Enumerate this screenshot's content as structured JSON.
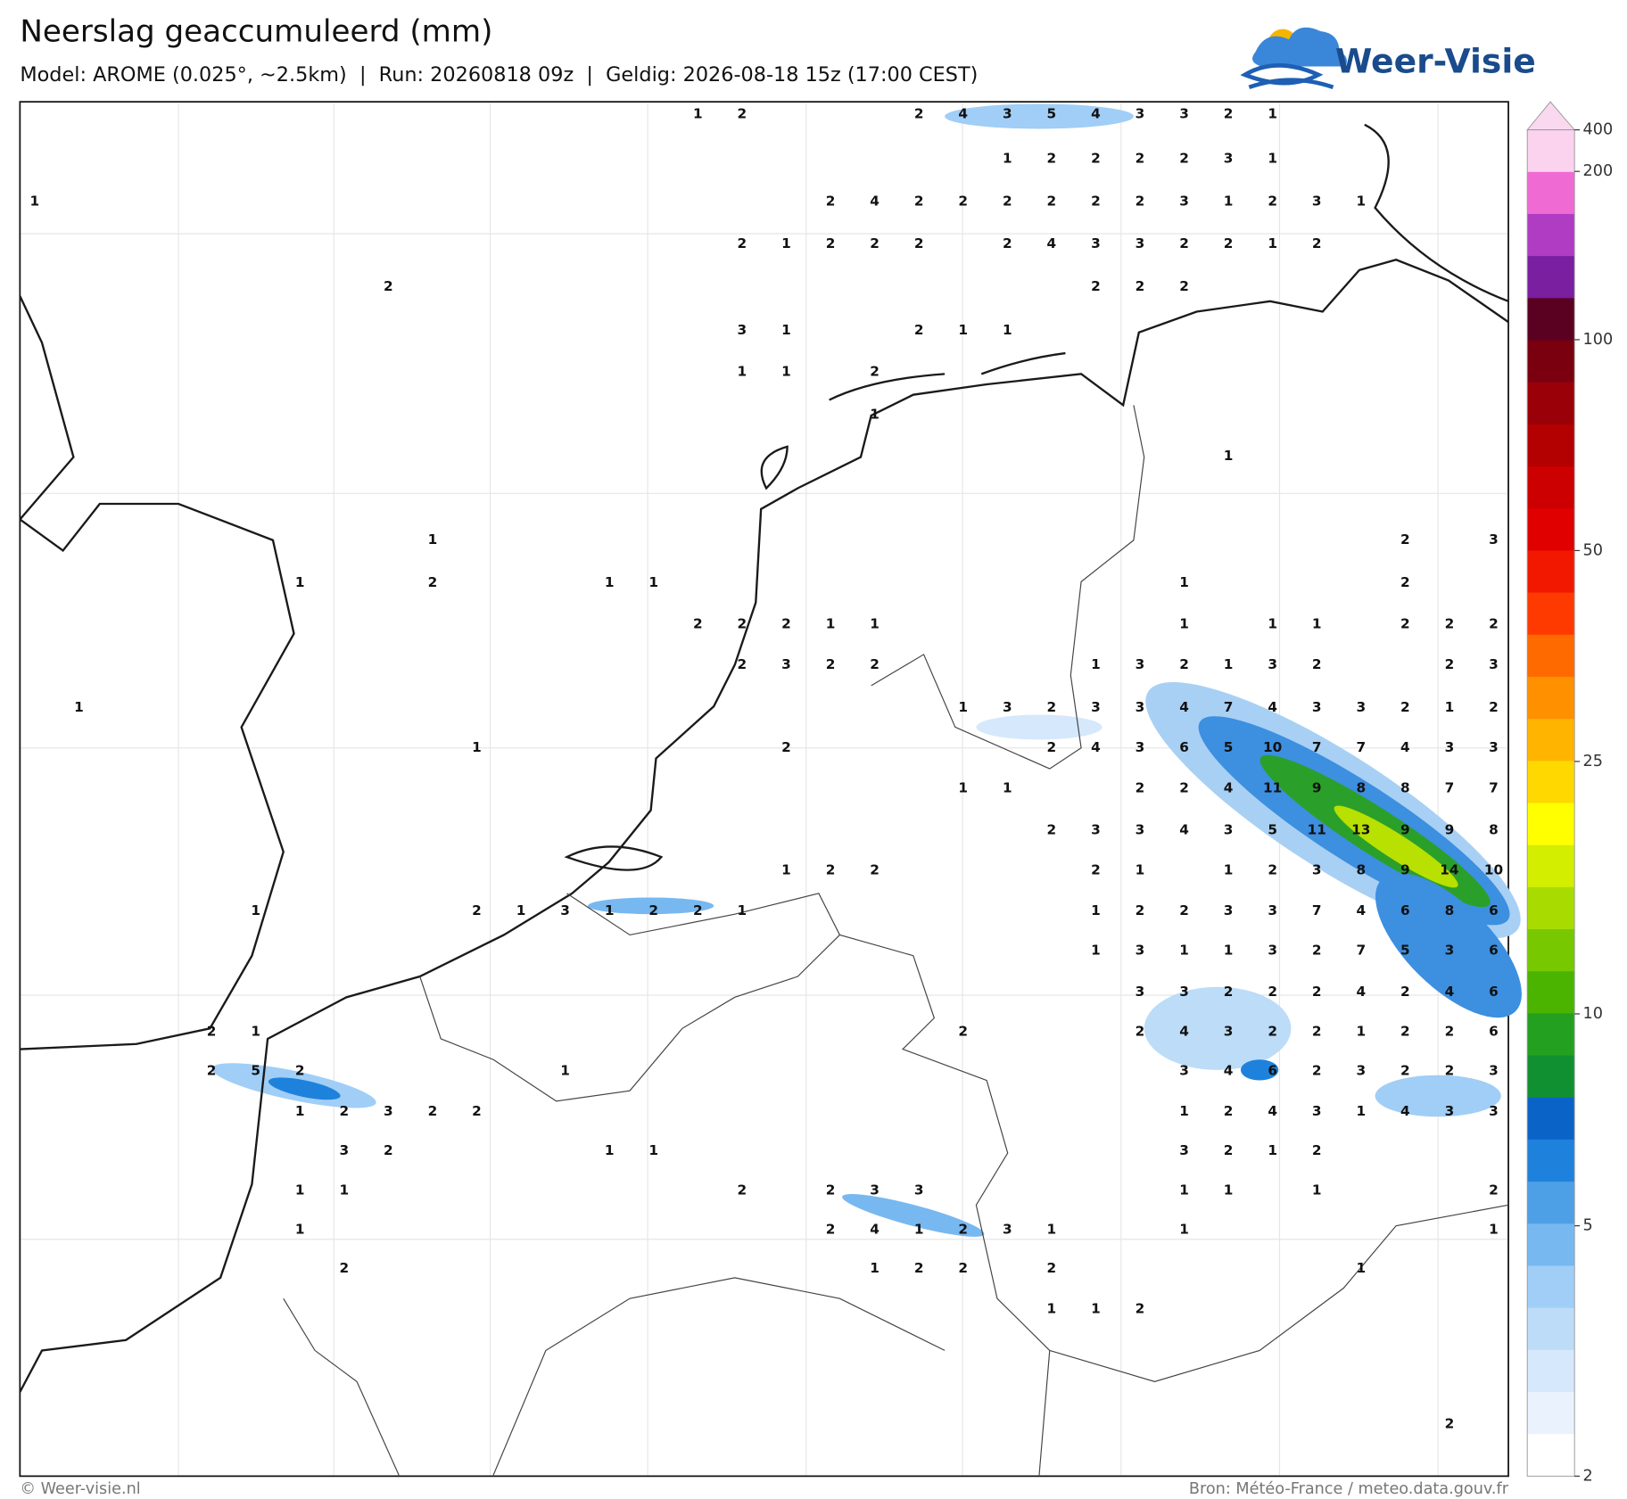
{
  "header": {
    "title": "Neerslag geaccumuleerd (mm)",
    "subtitle": "Model: AROME (0.025°, ~2.5km)  |  Run: 20260818 09z  |  Geldig: 2026-08-18 15z (17:00 CEST)",
    "logo": "Weer-Visie"
  },
  "colorbar": {
    "labels": [
      "400",
      "200",
      "100",
      "50",
      "25",
      "10",
      "5",
      "2"
    ],
    "colors": [
      "#fbd3ef",
      "#f06ad4",
      "#b03cc4",
      "#7a1fa0",
      "#5a0020",
      "#7a0010",
      "#9a0008",
      "#b30000",
      "#cc0000",
      "#e00000",
      "#f21800",
      "#ff3a00",
      "#ff6a00",
      "#ff9000",
      "#ffb400",
      "#ffd800",
      "#ffff00",
      "#d4ee00",
      "#a8dc00",
      "#78c800",
      "#4ab400",
      "#24a020",
      "#109030",
      "#0a64c8",
      "#1e82dc",
      "#4ea0e6",
      "#78b8f0",
      "#a0cef6",
      "#bcdcf8",
      "#d6e8fb",
      "#eaf3fd",
      "#ffffff"
    ]
  },
  "grid": [
    [
      null,
      null,
      null,
      null,
      null,
      null,
      null,
      null,
      null,
      null,
      null,
      null,
      null,
      null,
      null,
      1,
      2,
      null,
      null,
      null,
      2,
      4,
      3,
      5,
      4,
      3,
      3,
      2,
      1,
      null,
      null,
      null,
      null,
      null
    ],
    [
      null,
      null,
      null,
      null,
      null,
      null,
      null,
      null,
      null,
      null,
      null,
      null,
      null,
      null,
      null,
      null,
      null,
      null,
      null,
      null,
      null,
      null,
      1,
      2,
      2,
      2,
      2,
      3,
      1,
      null,
      null,
      null,
      null,
      null
    ],
    [
      1,
      null,
      null,
      null,
      null,
      null,
      null,
      null,
      null,
      null,
      null,
      null,
      null,
      null,
      null,
      null,
      null,
      null,
      2,
      4,
      2,
      2,
      2,
      2,
      2,
      2,
      3,
      1,
      2,
      3,
      1,
      null,
      null,
      null
    ],
    [
      null,
      null,
      null,
      null,
      null,
      null,
      null,
      null,
      null,
      null,
      null,
      null,
      null,
      null,
      null,
      null,
      2,
      1,
      2,
      2,
      2,
      null,
      2,
      4,
      3,
      3,
      2,
      2,
      1,
      2,
      null,
      null,
      null,
      null
    ],
    [
      null,
      null,
      null,
      null,
      null,
      null,
      null,
      null,
      2,
      null,
      null,
      null,
      null,
      null,
      null,
      null,
      null,
      null,
      null,
      null,
      null,
      null,
      null,
      null,
      2,
      2,
      2,
      null,
      null,
      null,
      null,
      null,
      null,
      null
    ],
    [
      null,
      null,
      null,
      null,
      null,
      null,
      null,
      null,
      null,
      null,
      null,
      null,
      null,
      null,
      null,
      null,
      3,
      1,
      null,
      null,
      2,
      1,
      1,
      null,
      null,
      null,
      null,
      null,
      null,
      null,
      null,
      null,
      null,
      null
    ],
    [
      null,
      null,
      null,
      null,
      null,
      null,
      null,
      null,
      null,
      null,
      null,
      null,
      null,
      null,
      null,
      null,
      1,
      1,
      null,
      2,
      null,
      null,
      null,
      null,
      null,
      null,
      null,
      null,
      null,
      null,
      null,
      null,
      null,
      null
    ],
    [
      null,
      null,
      null,
      null,
      null,
      null,
      null,
      null,
      null,
      null,
      null,
      null,
      null,
      null,
      null,
      null,
      null,
      null,
      null,
      1,
      null,
      null,
      null,
      null,
      null,
      null,
      null,
      null,
      null,
      null,
      null,
      null,
      null,
      null
    ],
    [
      null,
      null,
      null,
      null,
      null,
      null,
      null,
      null,
      null,
      null,
      null,
      null,
      null,
      null,
      null,
      null,
      null,
      null,
      null,
      null,
      null,
      null,
      null,
      null,
      null,
      null,
      null,
      1,
      null,
      null,
      null,
      null,
      null,
      null
    ],
    [
      null,
      null,
      null,
      null,
      null,
      null,
      null,
      null,
      null,
      null,
      null,
      null,
      null,
      null,
      null,
      null,
      null,
      null,
      null,
      null,
      null,
      null,
      null,
      null,
      null,
      null,
      null,
      null,
      null,
      null,
      null,
      null,
      null,
      null
    ],
    [
      null,
      null,
      null,
      null,
      null,
      null,
      null,
      null,
      null,
      1,
      null,
      null,
      null,
      null,
      null,
      null,
      null,
      null,
      null,
      null,
      null,
      null,
      null,
      null,
      null,
      null,
      null,
      null,
      null,
      null,
      null,
      2,
      null,
      3
    ],
    [
      null,
      null,
      null,
      null,
      null,
      null,
      1,
      null,
      null,
      2,
      null,
      null,
      null,
      1,
      1,
      null,
      null,
      null,
      null,
      null,
      null,
      null,
      null,
      null,
      null,
      null,
      1,
      null,
      null,
      null,
      null,
      2,
      null,
      null
    ],
    [
      null,
      null,
      null,
      null,
      null,
      null,
      null,
      null,
      null,
      null,
      null,
      null,
      null,
      null,
      null,
      2,
      2,
      2,
      1,
      1,
      null,
      null,
      null,
      null,
      null,
      null,
      1,
      null,
      1,
      1,
      null,
      2,
      2,
      2
    ],
    [
      null,
      null,
      null,
      null,
      null,
      null,
      null,
      null,
      null,
      null,
      null,
      null,
      null,
      null,
      null,
      null,
      2,
      3,
      2,
      2,
      null,
      null,
      null,
      null,
      1,
      3,
      2,
      1,
      3,
      2,
      null,
      null,
      2,
      3
    ],
    [
      null,
      1,
      null,
      null,
      null,
      null,
      null,
      null,
      null,
      null,
      null,
      null,
      null,
      null,
      null,
      null,
      null,
      null,
      null,
      null,
      null,
      1,
      3,
      2,
      3,
      3,
      4,
      7,
      4,
      3,
      3,
      2,
      1,
      2
    ],
    [
      null,
      null,
      null,
      null,
      null,
      null,
      null,
      null,
      null,
      null,
      1,
      null,
      null,
      null,
      null,
      null,
      null,
      2,
      null,
      null,
      null,
      null,
      null,
      2,
      4,
      3,
      6,
      5,
      10,
      7,
      7,
      4,
      3,
      3
    ],
    [
      null,
      null,
      null,
      null,
      null,
      null,
      null,
      null,
      null,
      null,
      null,
      null,
      null,
      null,
      null,
      null,
      null,
      null,
      null,
      null,
      null,
      1,
      1,
      null,
      null,
      2,
      2,
      4,
      11,
      9,
      8,
      8,
      7,
      7
    ],
    [
      null,
      null,
      null,
      null,
      null,
      null,
      null,
      null,
      null,
      null,
      null,
      null,
      null,
      null,
      null,
      null,
      null,
      null,
      null,
      null,
      null,
      null,
      null,
      2,
      3,
      3,
      4,
      3,
      5,
      11,
      13,
      9,
      9,
      8
    ],
    [
      null,
      null,
      null,
      null,
      null,
      null,
      null,
      null,
      null,
      null,
      null,
      null,
      null,
      null,
      null,
      null,
      null,
      1,
      2,
      2,
      null,
      null,
      null,
      null,
      2,
      1,
      null,
      1,
      2,
      3,
      8,
      9,
      14,
      10
    ],
    [
      null,
      null,
      null,
      null,
      null,
      1,
      null,
      null,
      null,
      null,
      2,
      1,
      3,
      1,
      2,
      2,
      1,
      null,
      null,
      null,
      null,
      null,
      null,
      null,
      1,
      2,
      2,
      3,
      3,
      7,
      4,
      6,
      8,
      6
    ],
    [
      null,
      null,
      null,
      null,
      null,
      null,
      null,
      null,
      null,
      null,
      null,
      null,
      null,
      null,
      null,
      null,
      null,
      null,
      null,
      null,
      null,
      null,
      null,
      null,
      1,
      3,
      1,
      1,
      3,
      2,
      7,
      5,
      3,
      6
    ],
    [
      null,
      null,
      null,
      null,
      null,
      null,
      null,
      null,
      null,
      null,
      null,
      null,
      null,
      null,
      null,
      null,
      null,
      null,
      null,
      null,
      null,
      null,
      null,
      null,
      null,
      3,
      3,
      2,
      2,
      2,
      4,
      2,
      4,
      6
    ],
    [
      null,
      null,
      null,
      null,
      2,
      1,
      null,
      null,
      null,
      null,
      null,
      null,
      null,
      null,
      null,
      null,
      null,
      null,
      null,
      null,
      null,
      2,
      null,
      null,
      null,
      2,
      4,
      3,
      2,
      2,
      1,
      2,
      2,
      6
    ],
    [
      null,
      null,
      null,
      null,
      2,
      5,
      2,
      null,
      null,
      null,
      null,
      null,
      1,
      null,
      null,
      null,
      null,
      null,
      null,
      null,
      null,
      null,
      null,
      null,
      null,
      null,
      3,
      4,
      6,
      2,
      3,
      2,
      2,
      3
    ],
    [
      null,
      null,
      null,
      null,
      null,
      null,
      1,
      2,
      3,
      2,
      2,
      null,
      null,
      null,
      null,
      null,
      null,
      null,
      null,
      null,
      null,
      null,
      null,
      null,
      null,
      null,
      1,
      2,
      4,
      3,
      1,
      4,
      3,
      3
    ],
    [
      null,
      null,
      null,
      null,
      null,
      null,
      null,
      3,
      2,
      null,
      null,
      null,
      null,
      1,
      1,
      null,
      null,
      null,
      null,
      null,
      null,
      null,
      null,
      null,
      null,
      null,
      3,
      2,
      1,
      2,
      null,
      null,
      null,
      null
    ],
    [
      null,
      null,
      null,
      null,
      null,
      null,
      1,
      1,
      null,
      null,
      null,
      null,
      null,
      null,
      null,
      null,
      2,
      null,
      2,
      3,
      3,
      null,
      null,
      null,
      null,
      null,
      1,
      1,
      null,
      1,
      null,
      null,
      null,
      2
    ],
    [
      null,
      null,
      null,
      null,
      null,
      null,
      1,
      null,
      null,
      null,
      null,
      null,
      null,
      null,
      null,
      null,
      null,
      null,
      2,
      4,
      1,
      2,
      3,
      1,
      null,
      null,
      1,
      null,
      null,
      null,
      null,
      null,
      null,
      1
    ],
    [
      null,
      null,
      null,
      null,
      null,
      null,
      null,
      2,
      null,
      null,
      null,
      null,
      null,
      null,
      null,
      null,
      null,
      null,
      null,
      1,
      2,
      2,
      null,
      2,
      null,
      null,
      null,
      null,
      null,
      null,
      1,
      null,
      null,
      null
    ],
    [
      null,
      null,
      null,
      null,
      null,
      null,
      null,
      null,
      null,
      null,
      null,
      null,
      null,
      null,
      null,
      null,
      null,
      null,
      null,
      null,
      null,
      null,
      null,
      1,
      1,
      2,
      null,
      null,
      null,
      null,
      null,
      null,
      null,
      null
    ],
    [
      null,
      null,
      null,
      null,
      null,
      null,
      null,
      null,
      null,
      null,
      null,
      null,
      null,
      null,
      null,
      null,
      null,
      null,
      null,
      null,
      null,
      null,
      null,
      null,
      null,
      null,
      null,
      null,
      null,
      null,
      null,
      null,
      null,
      null
    ],
    [
      null,
      null,
      null,
      null,
      null,
      null,
      null,
      null,
      null,
      null,
      null,
      null,
      null,
      null,
      null,
      null,
      null,
      null,
      null,
      null,
      null,
      null,
      null,
      null,
      null,
      null,
      null,
      null,
      null,
      null,
      null,
      null,
      null,
      null
    ],
    [
      null,
      null,
      null,
      null,
      null,
      null,
      null,
      null,
      null,
      null,
      null,
      null,
      null,
      null,
      null,
      null,
      null,
      null,
      null,
      null,
      null,
      null,
      null,
      null,
      null,
      null,
      null,
      null,
      null,
      null,
      null,
      null,
      2,
      null
    ]
  ],
  "footer": {
    "left": "© Weer-visie.nl",
    "right": "Bron: Météo-France / meteo.data.gouv.fr"
  }
}
